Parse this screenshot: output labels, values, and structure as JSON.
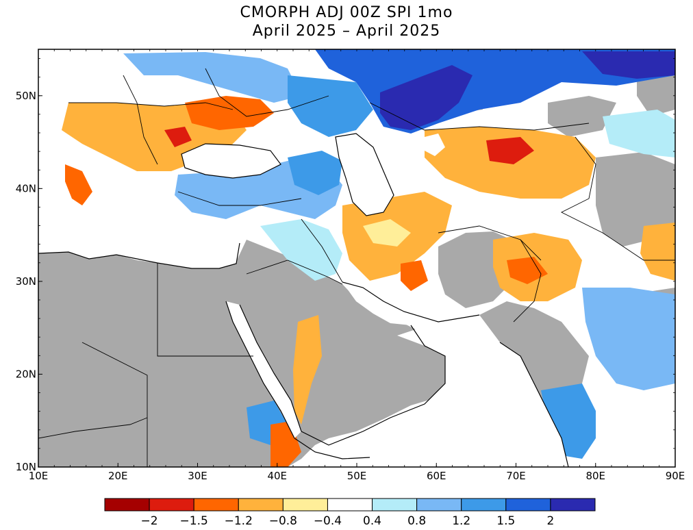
{
  "title": {
    "line1": "CMORPH ADJ 00Z SPI 1mo",
    "line2": "April 2025 – April 2025"
  },
  "map": {
    "lon_range": [
      10,
      90
    ],
    "lat_range": [
      10,
      55
    ],
    "no_data_color": "#a9a9a9",
    "x_ticks": [
      "10E",
      "20E",
      "30E",
      "40E",
      "50E",
      "60E",
      "70E",
      "80E",
      "90E"
    ],
    "y_ticks": [
      "10N",
      "20N",
      "30N",
      "40N",
      "50N"
    ]
  },
  "colorbar": {
    "colors": [
      "#a50000",
      "#dd1c0e",
      "#ff6600",
      "#ffb23c",
      "#ffee99",
      "#ffffff",
      "#b4ecf8",
      "#79b8f5",
      "#3d9ae8",
      "#1f62db",
      "#2a2ab0"
    ],
    "labels": [
      "−2",
      "−1.5",
      "−1.2",
      "−0.8",
      "−0.4",
      "0.4",
      "0.8",
      "1.2",
      "1.5",
      "2"
    ]
  }
}
